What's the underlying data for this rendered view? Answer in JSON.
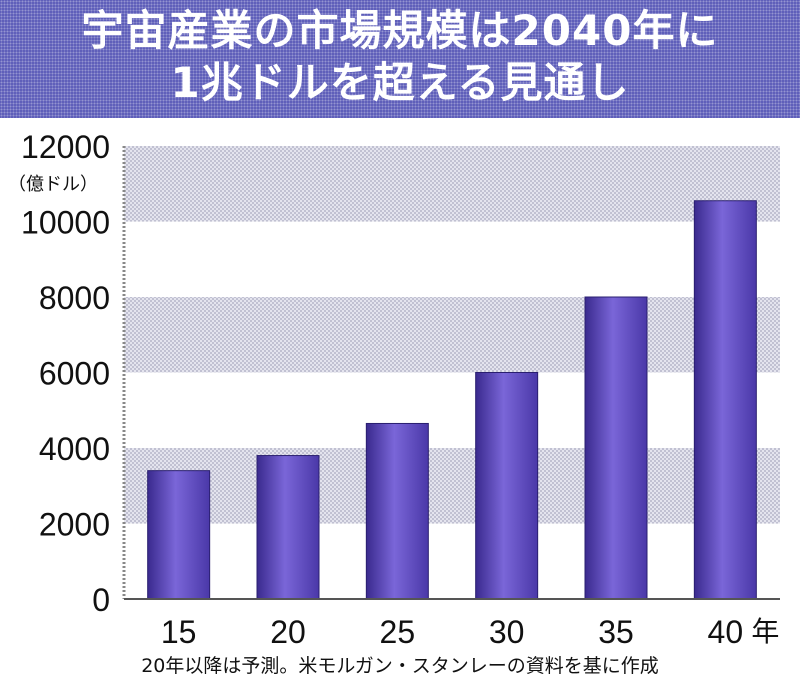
{
  "title": {
    "line1": "宇宙産業の市場規模は2040年に",
    "line2": "1兆ドルを超える見通し"
  },
  "colors": {
    "banner": "#5a5ab8",
    "bar": "#6a54c8",
    "bar_dark": "#3a2a8e",
    "band": "#c9c9d8"
  },
  "chart_data": {
    "type": "bar",
    "categories": [
      "15",
      "20",
      "25",
      "30",
      "35",
      "40"
    ],
    "category_suffix": "年",
    "values": [
      3400,
      3800,
      4650,
      6000,
      8000,
      10550
    ],
    "ylim": [
      0,
      12000
    ],
    "yticks": [
      0,
      2000,
      4000,
      6000,
      8000,
      10000,
      12000
    ],
    "yunit": "（億ドル）",
    "grid": "alternating-bands"
  },
  "source_note": "20年以降は予測。米モルガン・スタンレーの資料を基に作成"
}
